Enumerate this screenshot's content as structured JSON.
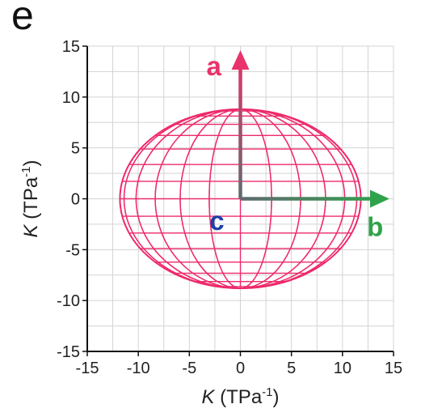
{
  "panel_label": "e",
  "colors": {
    "ellipsoid": "#ee2a6a",
    "axis_a": "#e8336b",
    "axis_b": "#2ea34a",
    "axis_c": "#1f3fa8",
    "arrow_base": "#606a70",
    "grid": "#d3d3d3"
  },
  "chart_data": {
    "type": "line",
    "title": "",
    "xlabel": {
      "symbol": "K",
      "unit": "(TPa",
      "sup": "-1",
      "close": ")"
    },
    "ylabel": {
      "symbol": "K",
      "unit": "(TPa",
      "sup": "-1",
      "close": ")"
    },
    "xlim": [
      -15,
      15
    ],
    "ylim": [
      -15,
      15
    ],
    "xticks": [
      -15,
      -10,
      -5,
      0,
      5,
      10,
      15
    ],
    "yticks": [
      -15,
      -10,
      -5,
      0,
      5,
      10,
      15
    ],
    "xtick_labels": [
      "-15",
      "-10",
      "-5",
      "0",
      "5",
      "10",
      "15"
    ],
    "ytick_labels": [
      "-15",
      "-10",
      "-5",
      "0",
      "5",
      "10",
      "15"
    ],
    "grid": true,
    "ellipsoid": {
      "semi_axis_horizontal": 11.8,
      "semi_axis_vertical": 8.8,
      "meridians": 24,
      "parallels": 16
    },
    "axes_vectors": [
      {
        "label": "a",
        "from": [
          0,
          0
        ],
        "to": [
          0,
          14.6
        ],
        "color_key": "axis_a",
        "label_at": [
          -2.6,
          13.0
        ]
      },
      {
        "label": "b",
        "from": [
          0,
          0
        ],
        "to": [
          14.6,
          0
        ],
        "color_key": "axis_b",
        "label_at": [
          13.2,
          -2.8
        ]
      },
      {
        "label": "c",
        "from": [
          0,
          0
        ],
        "to": [
          0,
          0
        ],
        "color_key": "axis_c",
        "label_at": [
          -2.3,
          -2.2
        ]
      }
    ]
  }
}
